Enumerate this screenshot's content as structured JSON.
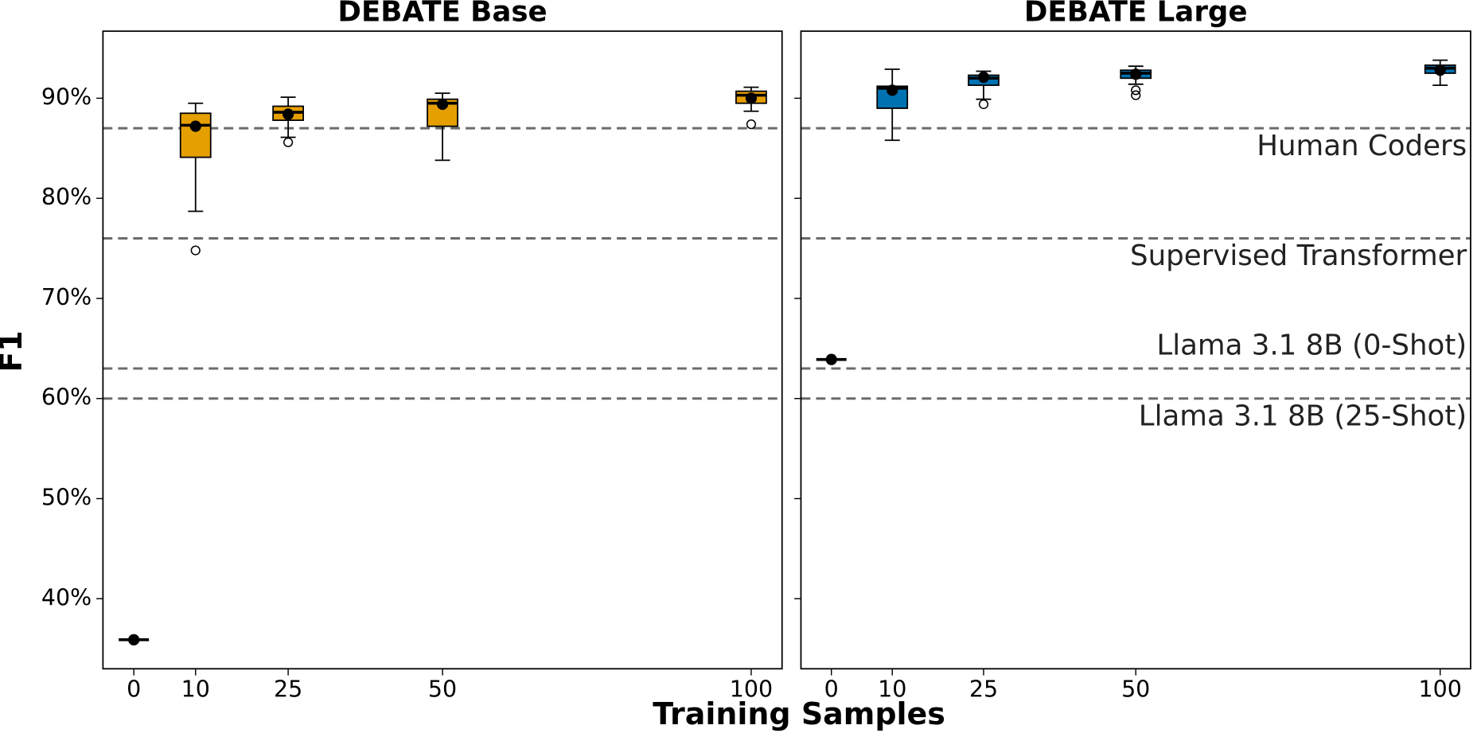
{
  "chart_data": [
    {
      "type": "box",
      "title": "DEBATE Base",
      "ylabel": "F1",
      "xlabel": "Training Samples",
      "color": "#E69F00",
      "x": [
        0,
        10,
        25,
        50,
        100
      ],
      "boxes": [
        {
          "median": 35.9,
          "mean": 35.9
        },
        {
          "low": 78.7,
          "q1": 84.1,
          "median": 87.3,
          "q3": 88.5,
          "high": 89.5,
          "mean": 87.2,
          "outliers": [
            74.8
          ]
        },
        {
          "low": 86.1,
          "q1": 87.8,
          "median": 88.6,
          "q3": 89.2,
          "high": 90.1,
          "mean": 88.4,
          "outliers": [
            85.6
          ]
        },
        {
          "low": 83.8,
          "q1": 87.2,
          "median": 89.5,
          "q3": 89.9,
          "high": 90.5,
          "mean": 89.4
        },
        {
          "low": 88.7,
          "q1": 89.5,
          "median": 90.3,
          "q3": 90.7,
          "high": 91.1,
          "mean": 90.0,
          "outliers": [
            87.4
          ]
        }
      ],
      "hlines": [
        87,
        76,
        63,
        60
      ],
      "xlim": [
        -5,
        105
      ],
      "ylim": [
        33,
        96.7
      ],
      "xticks": [
        0,
        10,
        25,
        50,
        100
      ],
      "yticks": [
        {
          "value": 40,
          "label": "40%"
        },
        {
          "value": 50,
          "label": "50%"
        },
        {
          "value": 60,
          "label": "60%"
        },
        {
          "value": 70,
          "label": "70%"
        },
        {
          "value": 80,
          "label": "80%"
        },
        {
          "value": 90,
          "label": "90%"
        }
      ]
    },
    {
      "type": "box",
      "title": "DEBATE Large",
      "color": "#0072B2",
      "x": [
        0,
        10,
        25,
        50,
        100
      ],
      "boxes": [
        {
          "median": 63.9,
          "mean": 63.9
        },
        {
          "low": 85.8,
          "q1": 89.0,
          "median": 91.0,
          "q3": 91.2,
          "high": 92.9,
          "mean": 90.8
        },
        {
          "low": 89.9,
          "q1": 91.3,
          "median": 92.0,
          "q3": 92.3,
          "high": 92.7,
          "mean": 92.1,
          "outliers": [
            89.4
          ]
        },
        {
          "low": 91.4,
          "q1": 92.0,
          "median": 92.5,
          "q3": 92.8,
          "high": 93.2,
          "mean": 92.4,
          "outliers": [
            90.8,
            90.3
          ]
        },
        {
          "low": 91.3,
          "q1": 92.5,
          "median": 93.0,
          "q3": 93.3,
          "high": 93.8,
          "mean": 92.8
        }
      ],
      "reference_lines": [
        {
          "label": "Human Coders",
          "value": 87
        },
        {
          "label": "Supervised Transformer",
          "value": 76
        },
        {
          "label": "Llama 3.1 8B (0-Shot)",
          "value": 63
        },
        {
          "label": "Llama 3.1 8B (25-Shot)",
          "value": 60
        }
      ],
      "xlim": [
        -5,
        105
      ],
      "ylim": [
        33,
        96.7
      ],
      "xticks": [
        0,
        10,
        25,
        50,
        100
      ],
      "yticks": [
        40,
        50,
        60,
        70,
        80,
        90
      ]
    }
  ]
}
